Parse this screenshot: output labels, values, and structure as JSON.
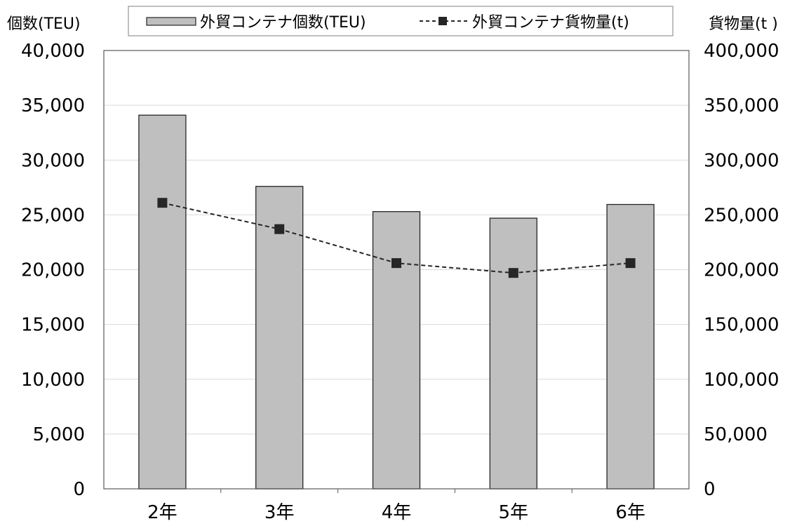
{
  "chart_data": {
    "type": "bar",
    "categories": [
      "2年",
      "3年",
      "4年",
      "5年",
      "6年"
    ],
    "series": [
      {
        "name": "外貿コンテナ個数(TEU)",
        "type": "bar",
        "axis": "left",
        "values": [
          34100,
          27600,
          25300,
          24700,
          25950
        ],
        "color": "#bfbfbf"
      },
      {
        "name": "外貿コンテナ貨物量(t)",
        "type": "line",
        "axis": "right",
        "values": [
          261000,
          237000,
          206000,
          197000,
          206000
        ],
        "color": "#262626"
      }
    ],
    "left_axis": {
      "title": "個数(TEU)",
      "ylim": [
        0,
        40000
      ],
      "ticks": [
        0,
        5000,
        10000,
        15000,
        20000,
        25000,
        30000,
        35000,
        40000
      ],
      "tick_labels": [
        "0",
        "5,000",
        "10,000",
        "15,000",
        "20,000",
        "25,000",
        "30,000",
        "35,000",
        "40,000"
      ]
    },
    "right_axis": {
      "title": "貨物量(t )",
      "ylim": [
        0,
        400000
      ],
      "ticks": [
        0,
        50000,
        100000,
        150000,
        200000,
        250000,
        300000,
        350000,
        400000
      ],
      "tick_labels": [
        "0",
        "50,000",
        "100,000",
        "150,000",
        "200,000",
        "250,000",
        "300,000",
        "350,000",
        "400,000"
      ]
    },
    "grid": true,
    "legend_position": "top"
  }
}
